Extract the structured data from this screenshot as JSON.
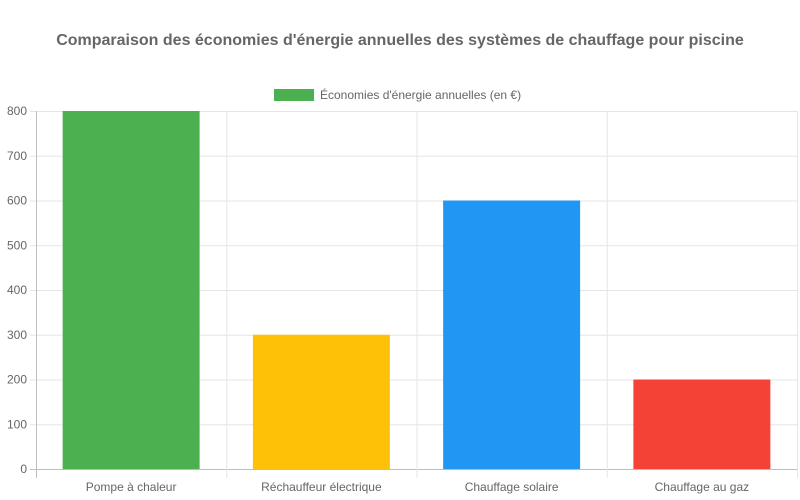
{
  "chart_data": {
    "type": "bar",
    "title": "Comparaison des économies d'énergie annuelles des systèmes de chauffage pour piscine",
    "xlabel": "",
    "ylabel": "",
    "categories": [
      "Pompe à chaleur",
      "Réchauffeur électrique",
      "Chauffage solaire",
      "Chauffage au gaz"
    ],
    "series": [
      {
        "name": "Économies d'énergie annuelles (en €)",
        "values": [
          800,
          300,
          600,
          200
        ],
        "colors": [
          "#4caf50",
          "#ffc107",
          "#2196f3",
          "#f44336"
        ]
      }
    ],
    "legend_color": "#4caf50",
    "ylim": [
      0,
      800
    ],
    "yticks": [
      0,
      100,
      200,
      300,
      400,
      500,
      600,
      700,
      800
    ],
    "grid": true,
    "legend_position": "top"
  }
}
